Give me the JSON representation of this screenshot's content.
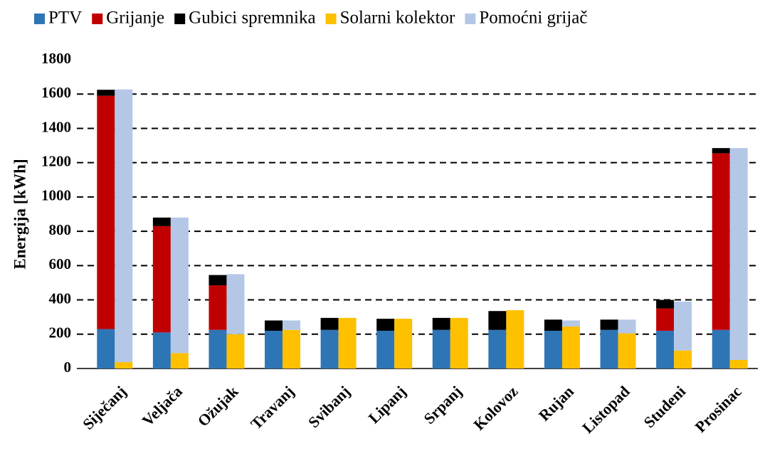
{
  "chart_data": {
    "type": "stacked-bar",
    "ylabel": "Energija [kWh]",
    "categories": [
      "Siječanj",
      "Veljača",
      "Ožujak",
      "Travanj",
      "Svibanj",
      "Lipanj",
      "Srpanj",
      "Kolovoz",
      "Rujan",
      "Listopad",
      "Studeni",
      "Prosinac"
    ],
    "series": [
      {
        "name": "PTV",
        "color": "#2e75b6",
        "stack": "left",
        "values": [
          230,
          210,
          225,
          220,
          225,
          220,
          225,
          225,
          220,
          225,
          220,
          225
        ]
      },
      {
        "name": "Grijanje",
        "color": "#c00000",
        "stack": "left",
        "values": [
          1360,
          620,
          260,
          0,
          0,
          0,
          0,
          0,
          0,
          0,
          130,
          1030
        ]
      },
      {
        "name": "Gubici spremnika",
        "color": "#000000",
        "stack": "left",
        "values": [
          35,
          50,
          60,
          60,
          70,
          70,
          70,
          110,
          65,
          60,
          50,
          30
        ]
      },
      {
        "name": "Solarni kolektor",
        "color": "#ffc000",
        "stack": "right",
        "values": [
          37,
          90,
          200,
          225,
          295,
          290,
          295,
          340,
          245,
          205,
          105,
          50
        ]
      },
      {
        "name": "Pomoćni grijač",
        "color": "#b4c7e7",
        "stack": "right",
        "values": [
          1590,
          790,
          350,
          55,
          0,
          0,
          0,
          0,
          35,
          80,
          285,
          1235
        ]
      }
    ],
    "ylim": [
      0,
      1800
    ],
    "yticks": [
      0,
      200,
      400,
      600,
      800,
      1000,
      1200,
      1400,
      1600,
      1800
    ],
    "grid": true,
    "legend": "top"
  }
}
